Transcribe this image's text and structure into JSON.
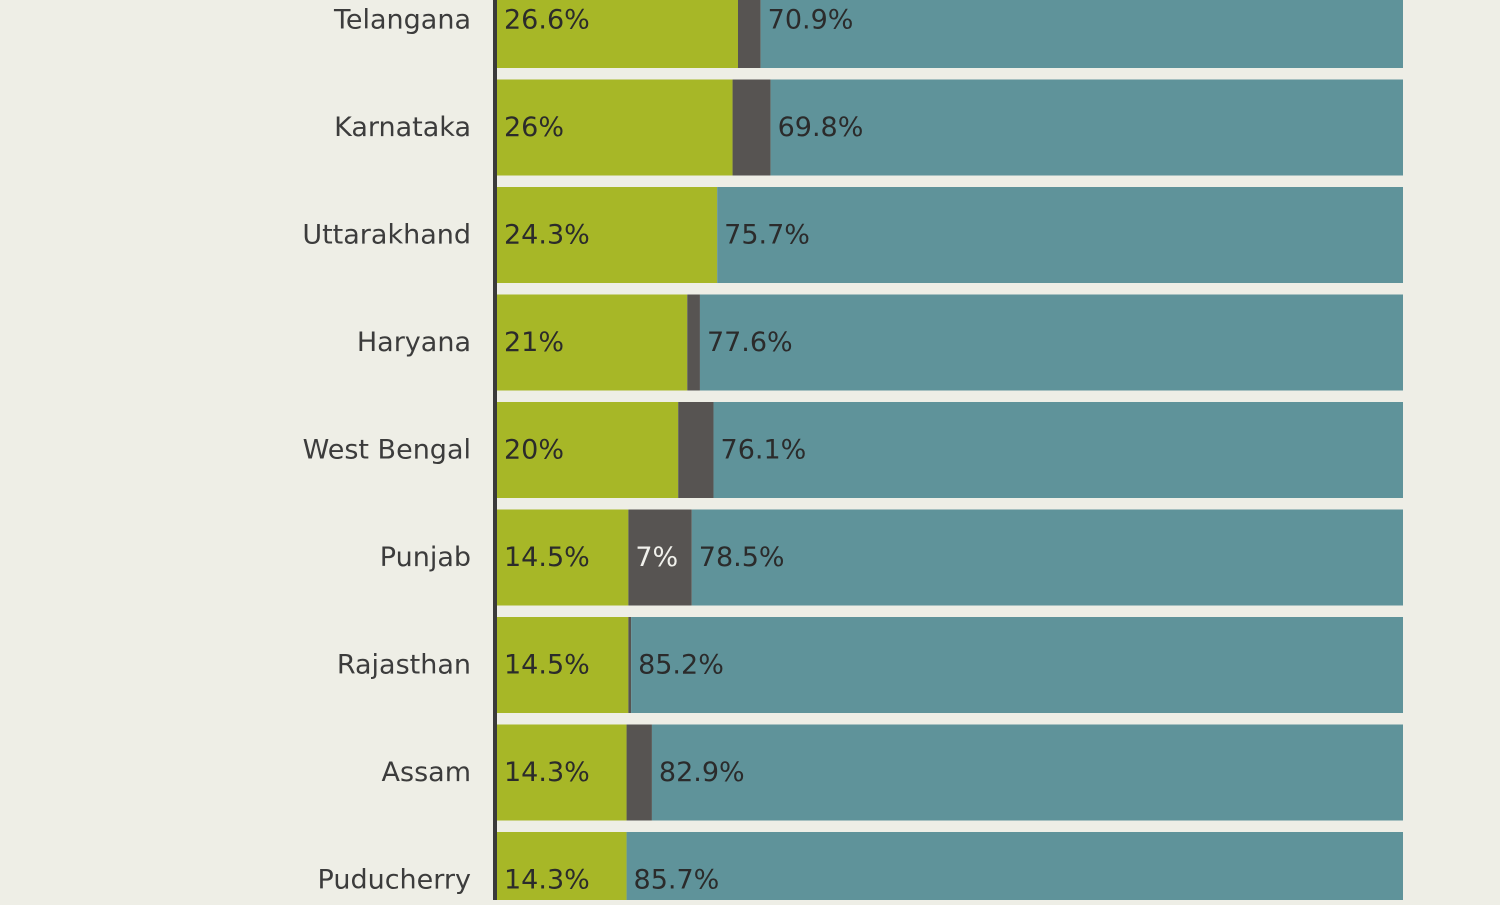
{
  "chart_data": {
    "type": "bar",
    "orientation": "horizontal",
    "stacked": true,
    "categories": [
      "Telangana",
      "Karnataka",
      "Uttarakhand",
      "Haryana",
      "West Bengal",
      "Punjab",
      "Rajasthan",
      "Assam",
      "Puducherry"
    ],
    "series": [
      {
        "color": "#a7b727",
        "values": [
          26.6,
          26,
          24.3,
          21,
          20,
          14.5,
          14.5,
          14.3,
          14.3
        ],
        "labels": [
          "26.6%",
          "26%",
          "24.3%",
          "21%",
          "20%",
          "14.5%",
          "14.5%",
          "14.3%",
          "14.3%"
        ]
      },
      {
        "color": "#575452",
        "values": [
          2.5,
          4.2,
          0,
          1.4,
          3.9,
          7,
          0.3,
          2.8,
          0
        ],
        "labels": [
          "",
          "",
          "",
          "",
          "",
          "7%",
          "",
          "",
          ""
        ]
      },
      {
        "color": "#5f939a",
        "values": [
          70.9,
          69.8,
          75.7,
          77.6,
          76.1,
          78.5,
          85.2,
          82.9,
          85.7
        ],
        "labels": [
          "70.9%",
          "69.8%",
          "75.7%",
          "77.6%",
          "76.1%",
          "78.5%",
          "85.2%",
          "82.9%",
          "85.7%"
        ]
      }
    ],
    "xlim": [
      0,
      100
    ],
    "grid": false,
    "legend": "none"
  }
}
